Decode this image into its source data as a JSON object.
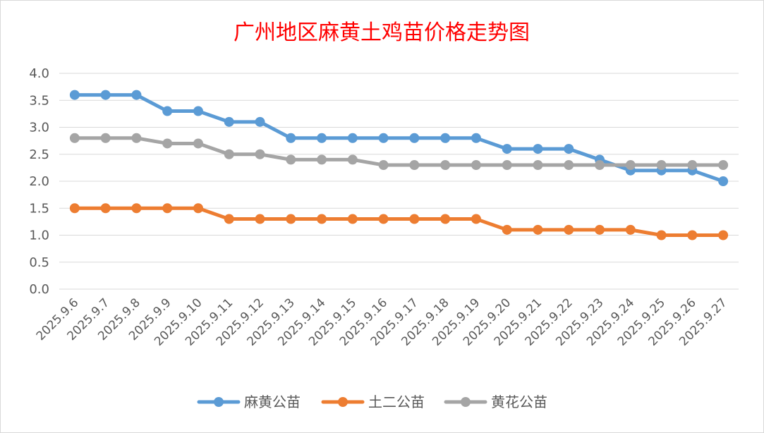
{
  "chart_data": {
    "type": "line",
    "title": "广州地区麻黄土鸡苗价格走势图",
    "xlabel": "",
    "ylabel": "",
    "ylim": [
      0,
      4.0
    ],
    "ytick_step": 0.5,
    "y_tick_labels": [
      "0.0",
      "0.5",
      "1.0",
      "1.5",
      "2.0",
      "2.5",
      "3.0",
      "3.5",
      "4.0"
    ],
    "grid": true,
    "legend_position": "bottom",
    "categories": [
      "2025.9.6",
      "2025.9.7",
      "2025.9.8",
      "2025.9.9",
      "2025.9.10",
      "2025.9.11",
      "2025.9.12",
      "2025.9.13",
      "2025.9.14",
      "2025.9.15",
      "2025.9.16",
      "2025.9.17",
      "2025.9.18",
      "2025.9.19",
      "2025.9.20",
      "2025.9.21",
      "2025.9.22",
      "2025.9.23",
      "2025.9.24",
      "2025.9.25",
      "2025.9.26",
      "2025.9.27"
    ],
    "series": [
      {
        "name": "麻黄公苗",
        "color": "#5b9bd5",
        "values": [
          3.6,
          3.6,
          3.6,
          3.3,
          3.3,
          3.1,
          3.1,
          2.8,
          2.8,
          2.8,
          2.8,
          2.8,
          2.8,
          2.8,
          2.6,
          2.6,
          2.6,
          2.4,
          2.2,
          2.2,
          2.2,
          2.0
        ]
      },
      {
        "name": "土二公苗",
        "color": "#ed7d31",
        "values": [
          1.5,
          1.5,
          1.5,
          1.5,
          1.5,
          1.3,
          1.3,
          1.3,
          1.3,
          1.3,
          1.3,
          1.3,
          1.3,
          1.3,
          1.1,
          1.1,
          1.1,
          1.1,
          1.1,
          1.0,
          1.0,
          1.0
        ]
      },
      {
        "name": "黄花公苗",
        "color": "#a5a5a5",
        "values": [
          2.8,
          2.8,
          2.8,
          2.7,
          2.7,
          2.5,
          2.5,
          2.4,
          2.4,
          2.4,
          2.3,
          2.3,
          2.3,
          2.3,
          2.3,
          2.3,
          2.3,
          2.3,
          2.3,
          2.3,
          2.3,
          2.3
        ]
      }
    ]
  }
}
